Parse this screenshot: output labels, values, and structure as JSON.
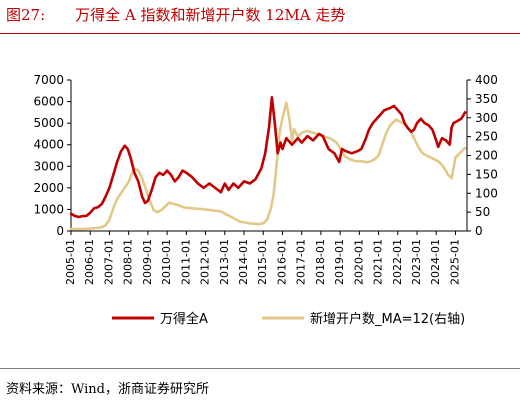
{
  "figure": {
    "number": "图27:",
    "title": "万得全 A 指数和新增开户数 12MA 走势",
    "source": "资料来源：Wind，浙商证券研究所"
  },
  "colors": {
    "primary": "#c00000",
    "secondary": "#e2c98a",
    "rule_bottom": "#7f7f7f"
  },
  "chart_data": {
    "type": "line",
    "x_tick_labels": [
      "2005-01",
      "2006-01",
      "2007-01",
      "2008-01",
      "2009-01",
      "2010-01",
      "2011-01",
      "2012-01",
      "2013-01",
      "2014-01",
      "2015-01",
      "2016-01",
      "2017-01",
      "2018-01",
      "2019-01",
      "2020-01",
      "2021-01",
      "2022-01",
      "2023-01",
      "2024-01",
      "2025-01"
    ],
    "x_range": [
      2005.0,
      2025.6
    ],
    "y_left": {
      "min": 0,
      "max": 7000,
      "ticks": [
        0,
        1000,
        2000,
        3000,
        4000,
        5000,
        6000,
        7000
      ]
    },
    "y_right": {
      "min": 0,
      "max": 400,
      "ticks": [
        0,
        50,
        100,
        150,
        200,
        250,
        300,
        350,
        400
      ]
    },
    "grid": false,
    "legend_position": "bottom",
    "series": [
      {
        "name": "万得全A",
        "axis": "left",
        "color": "#c00000",
        "x": [
          2005.0,
          2005.2,
          2005.4,
          2005.6,
          2005.8,
          2006.0,
          2006.2,
          2006.4,
          2006.6,
          2006.8,
          2007.0,
          2007.2,
          2007.4,
          2007.6,
          2007.8,
          2007.95,
          2008.1,
          2008.3,
          2008.5,
          2008.7,
          2008.85,
          2009.0,
          2009.2,
          2009.4,
          2009.6,
          2009.8,
          2010.0,
          2010.2,
          2010.4,
          2010.6,
          2010.8,
          2011.0,
          2011.3,
          2011.6,
          2011.9,
          2012.2,
          2012.5,
          2012.8,
          2013.0,
          2013.2,
          2013.45,
          2013.7,
          2014.0,
          2014.3,
          2014.6,
          2014.9,
          2015.1,
          2015.3,
          2015.45,
          2015.6,
          2015.75,
          2015.9,
          2016.0,
          2016.2,
          2016.5,
          2016.8,
          2017.0,
          2017.3,
          2017.6,
          2017.9,
          2018.1,
          2018.4,
          2018.7,
          2018.95,
          2019.1,
          2019.3,
          2019.6,
          2019.9,
          2020.1,
          2020.3,
          2020.5,
          2020.7,
          2020.9,
          2021.1,
          2021.3,
          2021.6,
          2021.8,
          2022.0,
          2022.2,
          2022.35,
          2022.5,
          2022.7,
          2022.85,
          2023.0,
          2023.2,
          2023.4,
          2023.6,
          2023.8,
          2024.0,
          2024.1,
          2024.3,
          2024.5,
          2024.7,
          2024.8,
          2024.9,
          2025.1,
          2025.3,
          2025.5
        ],
        "y": [
          800,
          700,
          650,
          690,
          700,
          850,
          1050,
          1100,
          1250,
          1600,
          2000,
          2600,
          3200,
          3700,
          3950,
          3800,
          3400,
          2700,
          2300,
          1600,
          1300,
          1400,
          1900,
          2500,
          2700,
          2600,
          2800,
          2600,
          2300,
          2500,
          2800,
          2700,
          2500,
          2200,
          2000,
          2200,
          2000,
          1800,
          2200,
          1900,
          2200,
          2000,
          2300,
          2200,
          2400,
          2900,
          3600,
          4800,
          6200,
          5000,
          3600,
          4100,
          3800,
          4300,
          4000,
          4300,
          4100,
          4400,
          4200,
          4500,
          4400,
          3800,
          3600,
          3200,
          3800,
          3700,
          3600,
          3700,
          3800,
          4200,
          4700,
          5000,
          5200,
          5400,
          5600,
          5700,
          5800,
          5600,
          5400,
          5000,
          4800,
          4600,
          4700,
          5000,
          5200,
          5000,
          4900,
          4700,
          4200,
          3900,
          4300,
          4200,
          4000,
          4800,
          5000,
          5100,
          5200,
          5500
        ]
      },
      {
        "name": "新增开户数_MA=12(右轴)",
        "axis": "right",
        "color": "#e2c98a",
        "x": [
          2005.0,
          2005.5,
          2006.0,
          2006.3,
          2006.6,
          2006.8,
          2007.0,
          2007.2,
          2007.4,
          2007.6,
          2007.8,
          2008.0,
          2008.15,
          2008.3,
          2008.5,
          2008.7,
          2008.9,
          2009.1,
          2009.3,
          2009.5,
          2009.7,
          2009.9,
          2010.1,
          2010.5,
          2010.9,
          2011.3,
          2011.8,
          2012.3,
          2012.8,
          2013.3,
          2013.8,
          2014.3,
          2014.7,
          2015.0,
          2015.2,
          2015.4,
          2015.55,
          2015.7,
          2015.85,
          2016.0,
          2016.1,
          2016.2,
          2016.35,
          2016.5,
          2016.6,
          2016.8,
          2017.0,
          2017.3,
          2017.6,
          2017.9,
          2018.2,
          2018.5,
          2018.8,
          2019.0,
          2019.2,
          2019.5,
          2019.8,
          2020.1,
          2020.4,
          2020.6,
          2020.8,
          2021.0,
          2021.2,
          2021.4,
          2021.6,
          2021.8,
          2021.9,
          2022.1,
          2022.3,
          2022.5,
          2022.7,
          2022.9,
          2023.1,
          2023.3,
          2023.5,
          2023.7,
          2023.9,
          2024.1,
          2024.3,
          2024.5,
          2024.6,
          2024.7,
          2024.8,
          2025.0,
          2025.2,
          2025.4,
          2025.5
        ],
        "y": [
          5,
          5,
          6,
          8,
          10,
          15,
          30,
          60,
          85,
          100,
          115,
          130,
          150,
          165,
          160,
          140,
          110,
          80,
          55,
          50,
          55,
          65,
          75,
          70,
          62,
          60,
          58,
          55,
          52,
          38,
          25,
          20,
          18,
          20,
          30,
          60,
          100,
          180,
          260,
          300,
          320,
          340,
          300,
          240,
          270,
          250,
          260,
          265,
          260,
          255,
          250,
          245,
          235,
          220,
          200,
          190,
          185,
          185,
          182,
          185,
          190,
          200,
          230,
          260,
          280,
          290,
          295,
          290,
          285,
          275,
          260,
          240,
          220,
          205,
          200,
          195,
          190,
          185,
          175,
          160,
          150,
          145,
          140,
          195,
          205,
          215,
          220
        ]
      }
    ]
  }
}
